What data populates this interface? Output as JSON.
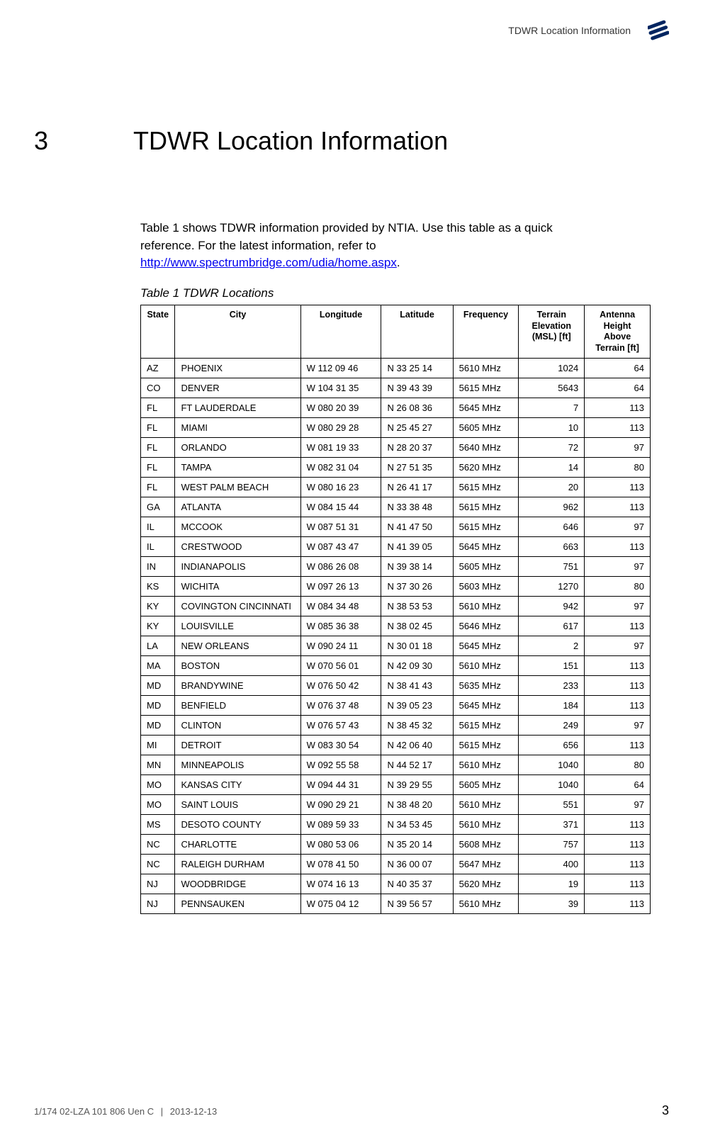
{
  "header": {
    "label": "TDWR Location Information",
    "logo_color": "#002561"
  },
  "section": {
    "number": "3",
    "title": "TDWR Location Information"
  },
  "intro": {
    "text_before_link": "Table 1 shows TDWR information provided by NTIA. Use this table as a quick reference.  For the latest information, refer to ",
    "link_text": "http://www.spectrumbridge.com/udia/home.aspx",
    "text_after_link": "."
  },
  "table_caption": "Table 1    TDWR Locations",
  "table": {
    "columns": [
      "State",
      "City",
      "Longitude",
      "Latitude",
      "Frequency",
      "Terrain Elevation (MSL) [ft]",
      "Antenna Height Above Terrain [ft]"
    ],
    "rows": [
      [
        "AZ",
        "PHOENIX",
        "W 112 09 46",
        "N 33 25 14",
        "5610 MHz",
        "1024",
        "64"
      ],
      [
        "CO",
        "DENVER",
        "W 104 31 35",
        "N 39 43 39",
        "5615 MHz",
        "5643",
        "64"
      ],
      [
        "FL",
        "FT LAUDERDALE",
        "W 080 20 39",
        "N 26 08 36",
        "5645 MHz",
        "7",
        "113"
      ],
      [
        "FL",
        "MIAMI",
        "W 080 29 28",
        "N 25 45 27",
        "5605 MHz",
        "10",
        "113"
      ],
      [
        "FL",
        "ORLANDO",
        "W 081 19 33",
        "N 28 20 37",
        "5640 MHz",
        "72",
        "97"
      ],
      [
        "FL",
        "TAMPA",
        "W 082 31 04",
        "N 27 51 35",
        "5620 MHz",
        "14",
        "80"
      ],
      [
        "FL",
        "WEST PALM BEACH",
        "W 080 16 23",
        "N 26 41 17",
        "5615 MHz",
        "20",
        "113"
      ],
      [
        "GA",
        "ATLANTA",
        "W 084 15 44",
        "N 33 38 48",
        "5615 MHz",
        "962",
        "113"
      ],
      [
        "IL",
        "MCCOOK",
        "W 087 51 31",
        "N 41 47 50",
        "5615 MHz",
        "646",
        "97"
      ],
      [
        "IL",
        "CRESTWOOD",
        "W 087 43 47",
        "N 41 39 05",
        "5645 MHz",
        "663",
        "113"
      ],
      [
        "IN",
        "INDIANAPOLIS",
        "W 086 26 08",
        "N 39 38 14",
        "5605 MHz",
        "751",
        "97"
      ],
      [
        "KS",
        "WICHITA",
        "W 097 26 13",
        "N 37 30 26",
        "5603 MHz",
        "1270",
        "80"
      ],
      [
        "KY",
        "COVINGTON CINCINNATI",
        "W 084 34 48",
        "N 38 53 53",
        "5610 MHz",
        "942",
        "97"
      ],
      [
        "KY",
        "LOUISVILLE",
        "W 085 36 38",
        "N 38 02 45",
        "5646 MHz",
        "617",
        "113"
      ],
      [
        "LA",
        "NEW ORLEANS",
        "W 090 24 11",
        "N 30 01 18",
        "5645 MHz",
        "2",
        "97"
      ],
      [
        "MA",
        "BOSTON",
        "W 070 56 01",
        "N 42 09 30",
        "5610 MHz",
        "151",
        "113"
      ],
      [
        "MD",
        "BRANDYWINE",
        "W 076 50 42",
        "N 38 41 43",
        "5635 MHz",
        "233",
        "113"
      ],
      [
        "MD",
        "BENFIELD",
        "W 076 37 48",
        "N 39 05 23",
        "5645 MHz",
        "184",
        "113"
      ],
      [
        "MD",
        "CLINTON",
        "W 076 57 43",
        "N 38 45 32",
        "5615 MHz",
        "249",
        "97"
      ],
      [
        "MI",
        "DETROIT",
        "W 083 30 54",
        "N 42 06 40",
        "5615 MHz",
        "656",
        "113"
      ],
      [
        "MN",
        "MINNEAPOLIS",
        "W 092 55 58",
        "N 44 52 17",
        "5610 MHz",
        "1040",
        "80"
      ],
      [
        "MO",
        "KANSAS CITY",
        "W 094 44 31",
        "N 39 29 55",
        "5605 MHz",
        "1040",
        "64"
      ],
      [
        "MO",
        "SAINT LOUIS",
        "W 090 29 21",
        "N 38 48 20",
        "5610 MHz",
        "551",
        "97"
      ],
      [
        "MS",
        "DESOTO COUNTY",
        "W 089 59 33",
        "N 34 53 45",
        "5610 MHz",
        "371",
        "113"
      ],
      [
        "NC",
        "CHARLOTTE",
        "W 080 53 06",
        "N 35 20 14",
        "5608 MHz",
        "757",
        "113"
      ],
      [
        "NC",
        "RALEIGH DURHAM",
        "W 078 41 50",
        "N 36 00 07",
        "5647 MHz",
        "400",
        "113"
      ],
      [
        "NJ",
        "WOODBRIDGE",
        "W 074 16 13",
        "N 40 35 37",
        "5620 MHz",
        "19",
        "113"
      ],
      [
        "NJ",
        "PENNSAUKEN",
        "W 075 04 12",
        "N 39 56 57",
        "5610 MHz",
        "39",
        "113"
      ]
    ]
  },
  "footer": {
    "doc_id": "1/174 02-LZA 101 806 Uen C",
    "date": "2013-12-13",
    "page_num": "3"
  }
}
